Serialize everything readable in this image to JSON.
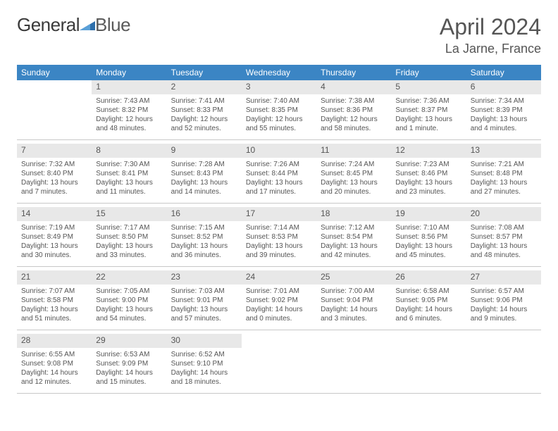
{
  "brand": {
    "part1": "General",
    "part2": "Blue"
  },
  "title": "April 2024",
  "location": "La Jarne, France",
  "colors": {
    "header_bg": "#3b85c4",
    "header_fg": "#ffffff",
    "daynum_bg": "#e8e8e8",
    "text": "#555555",
    "rule": "#c8c8c8"
  },
  "weekdays": [
    "Sunday",
    "Monday",
    "Tuesday",
    "Wednesday",
    "Thursday",
    "Friday",
    "Saturday"
  ],
  "weeks": [
    [
      {
        "n": "",
        "sr": "",
        "ss": "",
        "dl": ""
      },
      {
        "n": "1",
        "sr": "Sunrise: 7:43 AM",
        "ss": "Sunset: 8:32 PM",
        "dl": "Daylight: 12 hours and 48 minutes."
      },
      {
        "n": "2",
        "sr": "Sunrise: 7:41 AM",
        "ss": "Sunset: 8:33 PM",
        "dl": "Daylight: 12 hours and 52 minutes."
      },
      {
        "n": "3",
        "sr": "Sunrise: 7:40 AM",
        "ss": "Sunset: 8:35 PM",
        "dl": "Daylight: 12 hours and 55 minutes."
      },
      {
        "n": "4",
        "sr": "Sunrise: 7:38 AM",
        "ss": "Sunset: 8:36 PM",
        "dl": "Daylight: 12 hours and 58 minutes."
      },
      {
        "n": "5",
        "sr": "Sunrise: 7:36 AM",
        "ss": "Sunset: 8:37 PM",
        "dl": "Daylight: 13 hours and 1 minute."
      },
      {
        "n": "6",
        "sr": "Sunrise: 7:34 AM",
        "ss": "Sunset: 8:39 PM",
        "dl": "Daylight: 13 hours and 4 minutes."
      }
    ],
    [
      {
        "n": "7",
        "sr": "Sunrise: 7:32 AM",
        "ss": "Sunset: 8:40 PM",
        "dl": "Daylight: 13 hours and 7 minutes."
      },
      {
        "n": "8",
        "sr": "Sunrise: 7:30 AM",
        "ss": "Sunset: 8:41 PM",
        "dl": "Daylight: 13 hours and 11 minutes."
      },
      {
        "n": "9",
        "sr": "Sunrise: 7:28 AM",
        "ss": "Sunset: 8:43 PM",
        "dl": "Daylight: 13 hours and 14 minutes."
      },
      {
        "n": "10",
        "sr": "Sunrise: 7:26 AM",
        "ss": "Sunset: 8:44 PM",
        "dl": "Daylight: 13 hours and 17 minutes."
      },
      {
        "n": "11",
        "sr": "Sunrise: 7:24 AM",
        "ss": "Sunset: 8:45 PM",
        "dl": "Daylight: 13 hours and 20 minutes."
      },
      {
        "n": "12",
        "sr": "Sunrise: 7:23 AM",
        "ss": "Sunset: 8:46 PM",
        "dl": "Daylight: 13 hours and 23 minutes."
      },
      {
        "n": "13",
        "sr": "Sunrise: 7:21 AM",
        "ss": "Sunset: 8:48 PM",
        "dl": "Daylight: 13 hours and 27 minutes."
      }
    ],
    [
      {
        "n": "14",
        "sr": "Sunrise: 7:19 AM",
        "ss": "Sunset: 8:49 PM",
        "dl": "Daylight: 13 hours and 30 minutes."
      },
      {
        "n": "15",
        "sr": "Sunrise: 7:17 AM",
        "ss": "Sunset: 8:50 PM",
        "dl": "Daylight: 13 hours and 33 minutes."
      },
      {
        "n": "16",
        "sr": "Sunrise: 7:15 AM",
        "ss": "Sunset: 8:52 PM",
        "dl": "Daylight: 13 hours and 36 minutes."
      },
      {
        "n": "17",
        "sr": "Sunrise: 7:14 AM",
        "ss": "Sunset: 8:53 PM",
        "dl": "Daylight: 13 hours and 39 minutes."
      },
      {
        "n": "18",
        "sr": "Sunrise: 7:12 AM",
        "ss": "Sunset: 8:54 PM",
        "dl": "Daylight: 13 hours and 42 minutes."
      },
      {
        "n": "19",
        "sr": "Sunrise: 7:10 AM",
        "ss": "Sunset: 8:56 PM",
        "dl": "Daylight: 13 hours and 45 minutes."
      },
      {
        "n": "20",
        "sr": "Sunrise: 7:08 AM",
        "ss": "Sunset: 8:57 PM",
        "dl": "Daylight: 13 hours and 48 minutes."
      }
    ],
    [
      {
        "n": "21",
        "sr": "Sunrise: 7:07 AM",
        "ss": "Sunset: 8:58 PM",
        "dl": "Daylight: 13 hours and 51 minutes."
      },
      {
        "n": "22",
        "sr": "Sunrise: 7:05 AM",
        "ss": "Sunset: 9:00 PM",
        "dl": "Daylight: 13 hours and 54 minutes."
      },
      {
        "n": "23",
        "sr": "Sunrise: 7:03 AM",
        "ss": "Sunset: 9:01 PM",
        "dl": "Daylight: 13 hours and 57 minutes."
      },
      {
        "n": "24",
        "sr": "Sunrise: 7:01 AM",
        "ss": "Sunset: 9:02 PM",
        "dl": "Daylight: 14 hours and 0 minutes."
      },
      {
        "n": "25",
        "sr": "Sunrise: 7:00 AM",
        "ss": "Sunset: 9:04 PM",
        "dl": "Daylight: 14 hours and 3 minutes."
      },
      {
        "n": "26",
        "sr": "Sunrise: 6:58 AM",
        "ss": "Sunset: 9:05 PM",
        "dl": "Daylight: 14 hours and 6 minutes."
      },
      {
        "n": "27",
        "sr": "Sunrise: 6:57 AM",
        "ss": "Sunset: 9:06 PM",
        "dl": "Daylight: 14 hours and 9 minutes."
      }
    ],
    [
      {
        "n": "28",
        "sr": "Sunrise: 6:55 AM",
        "ss": "Sunset: 9:08 PM",
        "dl": "Daylight: 14 hours and 12 minutes."
      },
      {
        "n": "29",
        "sr": "Sunrise: 6:53 AM",
        "ss": "Sunset: 9:09 PM",
        "dl": "Daylight: 14 hours and 15 minutes."
      },
      {
        "n": "30",
        "sr": "Sunrise: 6:52 AM",
        "ss": "Sunset: 9:10 PM",
        "dl": "Daylight: 14 hours and 18 minutes."
      },
      {
        "n": "",
        "sr": "",
        "ss": "",
        "dl": ""
      },
      {
        "n": "",
        "sr": "",
        "ss": "",
        "dl": ""
      },
      {
        "n": "",
        "sr": "",
        "ss": "",
        "dl": ""
      },
      {
        "n": "",
        "sr": "",
        "ss": "",
        "dl": ""
      }
    ]
  ]
}
